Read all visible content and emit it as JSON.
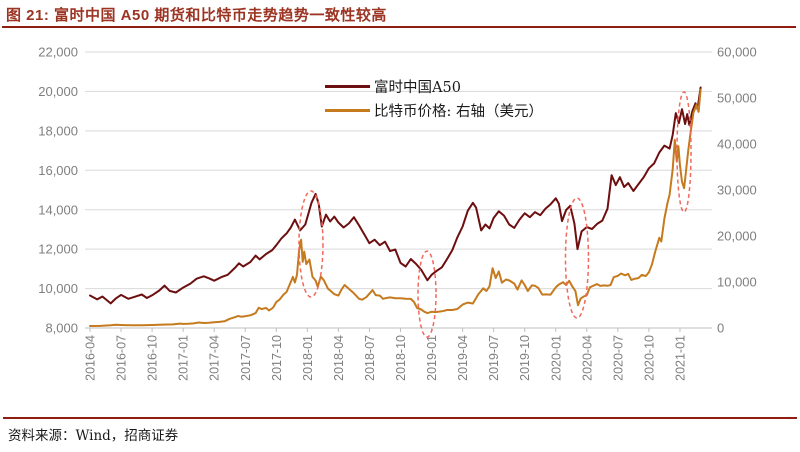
{
  "figure": {
    "title": "图 21: 富时中国 A50 期货和比特币走势趋势一致性较高",
    "source_note": "资料来源：Wind，招商证券",
    "accent_color": "#8f1d10",
    "title_color": "#9c3423"
  },
  "chart_data": {
    "type": "line",
    "title": "富时中国A50期货和比特币走势趋势一致性较高",
    "grid": "horizontal-on",
    "legend_position": "top-center",
    "x_axis": {
      "unit": "month",
      "start": "2016-04",
      "end": "2021-02",
      "tick_labels": [
        "2016-04",
        "2016-07",
        "2016-10",
        "2017-01",
        "2017-04",
        "2017-07",
        "2017-10",
        "2018-01",
        "2018-04",
        "2018-07",
        "2018-10",
        "2019-01",
        "2019-04",
        "2019-07",
        "2019-10",
        "2020-01",
        "2020-04",
        "2020-07",
        "2020-10",
        "2021-01"
      ],
      "tick_month_indices": [
        0,
        3,
        6,
        9,
        12,
        15,
        18,
        21,
        24,
        27,
        30,
        33,
        36,
        39,
        42,
        45,
        48,
        51,
        54,
        57
      ],
      "label_color": "#7f7f7f"
    },
    "y_axis_left": {
      "min": 8000,
      "max": 22000,
      "step": 2000,
      "tick_values": [
        22000,
        20000,
        18000,
        16000,
        14000,
        12000,
        10000,
        8000
      ],
      "label_color": "#7f7f7f"
    },
    "y_axis_right": {
      "min": 0,
      "max": 60000,
      "step": 10000,
      "tick_values": [
        60000,
        50000,
        40000,
        30000,
        20000,
        10000,
        0
      ],
      "label_color": "#7f7f7f"
    },
    "series": [
      {
        "name": "富时中国A50",
        "axis": "left",
        "color": "#6d0f10",
        "points": [
          [
            0,
            9650
          ],
          [
            0.7,
            9450
          ],
          [
            1.2,
            9600
          ],
          [
            2,
            9250
          ],
          [
            2.5,
            9500
          ],
          [
            3,
            9680
          ],
          [
            3.7,
            9480
          ],
          [
            4.2,
            9560
          ],
          [
            5,
            9700
          ],
          [
            5.5,
            9520
          ],
          [
            6,
            9660
          ],
          [
            6.7,
            9900
          ],
          [
            7.2,
            10150
          ],
          [
            7.7,
            9880
          ],
          [
            8.3,
            9800
          ],
          [
            9,
            10050
          ],
          [
            9.7,
            10250
          ],
          [
            10.3,
            10500
          ],
          [
            11,
            10620
          ],
          [
            11.5,
            10520
          ],
          [
            12,
            10400
          ],
          [
            12.7,
            10580
          ],
          [
            13.3,
            10700
          ],
          [
            14,
            11050
          ],
          [
            14.4,
            11280
          ],
          [
            14.8,
            11120
          ],
          [
            15.5,
            11350
          ],
          [
            16,
            11670
          ],
          [
            16.4,
            11480
          ],
          [
            17,
            11750
          ],
          [
            17.6,
            11950
          ],
          [
            18,
            12200
          ],
          [
            18.5,
            12550
          ],
          [
            19,
            12800
          ],
          [
            19.4,
            13100
          ],
          [
            19.8,
            13500
          ],
          [
            20.3,
            12950
          ],
          [
            20.8,
            13250
          ],
          [
            21.4,
            14350
          ],
          [
            21.8,
            14800
          ],
          [
            22.1,
            14300
          ],
          [
            22.4,
            13150
          ],
          [
            22.8,
            13750
          ],
          [
            23.2,
            13400
          ],
          [
            23.6,
            13650
          ],
          [
            24,
            13350
          ],
          [
            24.5,
            13100
          ],
          [
            25,
            13300
          ],
          [
            25.5,
            13620
          ],
          [
            26,
            13200
          ],
          [
            26.5,
            12750
          ],
          [
            27,
            12300
          ],
          [
            27.5,
            12480
          ],
          [
            28,
            12200
          ],
          [
            28.5,
            12380
          ],
          [
            29,
            11900
          ],
          [
            29.5,
            11980
          ],
          [
            30,
            11300
          ],
          [
            30.5,
            11120
          ],
          [
            31,
            11500
          ],
          [
            31.5,
            11250
          ],
          [
            32,
            10950
          ],
          [
            32.6,
            10420
          ],
          [
            33,
            10700
          ],
          [
            33.5,
            10900
          ],
          [
            34,
            11080
          ],
          [
            34.5,
            11500
          ],
          [
            35,
            11950
          ],
          [
            35.5,
            12600
          ],
          [
            36,
            13150
          ],
          [
            36.5,
            13950
          ],
          [
            37,
            14350
          ],
          [
            37.3,
            14100
          ],
          [
            37.8,
            12950
          ],
          [
            38.2,
            13250
          ],
          [
            38.6,
            13050
          ],
          [
            39,
            13580
          ],
          [
            39.5,
            13920
          ],
          [
            40,
            13700
          ],
          [
            40.5,
            13250
          ],
          [
            41,
            13080
          ],
          [
            41.5,
            13500
          ],
          [
            42,
            13820
          ],
          [
            42.5,
            13620
          ],
          [
            43,
            13880
          ],
          [
            43.5,
            13720
          ],
          [
            44,
            14050
          ],
          [
            44.5,
            14280
          ],
          [
            45,
            14580
          ],
          [
            45.3,
            14300
          ],
          [
            45.6,
            13420
          ],
          [
            46,
            13980
          ],
          [
            46.4,
            14200
          ],
          [
            46.8,
            13300
          ],
          [
            47.1,
            12000
          ],
          [
            47.5,
            12900
          ],
          [
            48,
            13120
          ],
          [
            48.5,
            13020
          ],
          [
            49,
            13280
          ],
          [
            49.5,
            13450
          ],
          [
            50,
            14050
          ],
          [
            50.4,
            15750
          ],
          [
            50.8,
            15250
          ],
          [
            51.2,
            15650
          ],
          [
            51.6,
            15150
          ],
          [
            52,
            15350
          ],
          [
            52.5,
            14950
          ],
          [
            53,
            15300
          ],
          [
            53.5,
            15650
          ],
          [
            54,
            16100
          ],
          [
            54.5,
            16350
          ],
          [
            55,
            16900
          ],
          [
            55.5,
            17250
          ],
          [
            56,
            17100
          ],
          [
            56.3,
            17800
          ],
          [
            56.6,
            18900
          ],
          [
            56.9,
            18400
          ],
          [
            57.2,
            19100
          ],
          [
            57.5,
            18350
          ],
          [
            57.7,
            18850
          ],
          [
            57.9,
            18300
          ],
          [
            58.2,
            19000
          ],
          [
            58.5,
            19400
          ],
          [
            58.7,
            19100
          ],
          [
            59,
            20200
          ]
        ]
      },
      {
        "name": "比特币价格: 右轴（美元）",
        "axis": "right",
        "color": "#c57a1e",
        "points": [
          [
            0,
            430
          ],
          [
            1,
            460
          ],
          [
            2,
            590
          ],
          [
            2.5,
            690
          ],
          [
            3,
            660
          ],
          [
            4,
            580
          ],
          [
            5,
            610
          ],
          [
            6,
            650
          ],
          [
            7,
            730
          ],
          [
            8,
            780
          ],
          [
            8.7,
            960
          ],
          [
            9,
            900
          ],
          [
            9.5,
            920
          ],
          [
            10,
            1010
          ],
          [
            10.5,
            1190
          ],
          [
            11,
            1090
          ],
          [
            11.5,
            1160
          ],
          [
            12,
            1260
          ],
          [
            12.5,
            1330
          ],
          [
            13,
            1460
          ],
          [
            13.5,
            2000
          ],
          [
            14,
            2350
          ],
          [
            14.3,
            2600
          ],
          [
            14.6,
            2450
          ],
          [
            15,
            2560
          ],
          [
            15.5,
            2760
          ],
          [
            16,
            3250
          ],
          [
            16.3,
            4400
          ],
          [
            16.6,
            4100
          ],
          [
            17,
            4380
          ],
          [
            17.3,
            3800
          ],
          [
            17.7,
            4450
          ],
          [
            18,
            5650
          ],
          [
            18.3,
            6150
          ],
          [
            18.7,
            7250
          ],
          [
            19,
            7850
          ],
          [
            19.3,
            9500
          ],
          [
            19.6,
            11100
          ],
          [
            19.8,
            9900
          ],
          [
            20,
            11600
          ],
          [
            20.2,
            16900
          ],
          [
            20.4,
            19200
          ],
          [
            20.55,
            14400
          ],
          [
            20.7,
            16600
          ],
          [
            20.9,
            13900
          ],
          [
            21.2,
            14900
          ],
          [
            21.5,
            11100
          ],
          [
            21.8,
            10300
          ],
          [
            22,
            8950
          ],
          [
            22.3,
            11200
          ],
          [
            22.6,
            10350
          ],
          [
            23,
            8550
          ],
          [
            23.3,
            7950
          ],
          [
            23.6,
            7350
          ],
          [
            24,
            7050
          ],
          [
            24.3,
            8350
          ],
          [
            24.6,
            9350
          ],
          [
            25,
            8550
          ],
          [
            25.5,
            7550
          ],
          [
            26,
            6350
          ],
          [
            26.3,
            6150
          ],
          [
            26.7,
            6700
          ],
          [
            27,
            7450
          ],
          [
            27.3,
            8250
          ],
          [
            27.6,
            7150
          ],
          [
            28,
            7050
          ],
          [
            28.3,
            6350
          ],
          [
            28.7,
            6550
          ],
          [
            29,
            6650
          ],
          [
            29.5,
            6480
          ],
          [
            30,
            6450
          ],
          [
            30.5,
            6380
          ],
          [
            31,
            6320
          ],
          [
            31.3,
            5650
          ],
          [
            31.6,
            4350
          ],
          [
            32,
            4020
          ],
          [
            32.3,
            3550
          ],
          [
            32.6,
            3250
          ],
          [
            33,
            3520
          ],
          [
            33.4,
            3460
          ],
          [
            34,
            3620
          ],
          [
            34.5,
            3920
          ],
          [
            35,
            3920
          ],
          [
            35.5,
            4120
          ],
          [
            36,
            5080
          ],
          [
            36.5,
            5520
          ],
          [
            37,
            5320
          ],
          [
            37.5,
            7250
          ],
          [
            38,
            8620
          ],
          [
            38.3,
            8050
          ],
          [
            38.6,
            9050
          ],
          [
            38.9,
            13000
          ],
          [
            39.2,
            10850
          ],
          [
            39.5,
            12300
          ],
          [
            39.8,
            9850
          ],
          [
            40.2,
            10550
          ],
          [
            40.5,
            10350
          ],
          [
            41,
            9650
          ],
          [
            41.3,
            8350
          ],
          [
            41.7,
            10350
          ],
          [
            42,
            9350
          ],
          [
            42.3,
            8050
          ],
          [
            42.7,
            9250
          ],
          [
            43,
            9180
          ],
          [
            43.3,
            8750
          ],
          [
            43.7,
            7250
          ],
          [
            44,
            7300
          ],
          [
            44.5,
            7250
          ],
          [
            45,
            8850
          ],
          [
            45.3,
            9450
          ],
          [
            45.7,
            9950
          ],
          [
            46,
            9350
          ],
          [
            46.3,
            10250
          ],
          [
            46.6,
            9050
          ],
          [
            46.9,
            8050
          ],
          [
            47.15,
            4950
          ],
          [
            47.4,
            6400
          ],
          [
            47.7,
            6850
          ],
          [
            48,
            7150
          ],
          [
            48.3,
            8850
          ],
          [
            48.7,
            9250
          ],
          [
            49,
            9550
          ],
          [
            49.3,
            9150
          ],
          [
            49.7,
            9250
          ],
          [
            50,
            9180
          ],
          [
            50.3,
            9350
          ],
          [
            50.6,
            11050
          ],
          [
            51,
            11350
          ],
          [
            51.3,
            11850
          ],
          [
            51.7,
            11450
          ],
          [
            52,
            11750
          ],
          [
            52.3,
            10450
          ],
          [
            52.7,
            10750
          ],
          [
            53,
            10850
          ],
          [
            53.3,
            11550
          ],
          [
            53.7,
            11300
          ],
          [
            54,
            12100
          ],
          [
            54.3,
            13850
          ],
          [
            54.6,
            16500
          ],
          [
            55,
            19600
          ],
          [
            55.2,
            18800
          ],
          [
            55.5,
            23800
          ],
          [
            55.8,
            27200
          ],
          [
            56,
            29000
          ],
          [
            56.3,
            34500
          ],
          [
            56.5,
            40900
          ],
          [
            56.7,
            36200
          ],
          [
            56.85,
            39500
          ],
          [
            57,
            35500
          ],
          [
            57.2,
            31800
          ],
          [
            57.4,
            30400
          ],
          [
            57.6,
            34500
          ],
          [
            57.8,
            38500
          ],
          [
            58,
            42000
          ],
          [
            58.3,
            46800
          ],
          [
            58.6,
            48500
          ],
          [
            58.8,
            47000
          ],
          [
            59,
            51800
          ]
        ]
      }
    ],
    "annotations": {
      "style": "dashed-ellipse",
      "color": "#f2685c",
      "ellipses": [
        {
          "x_index": 21.35,
          "rx_months": 1.16,
          "y_center_left": 12260,
          "ry_left": 2690
        },
        {
          "x_index": 32.56,
          "rx_months": 0.87,
          "y_center_left": 9720,
          "ry_left": 2180
        },
        {
          "x_index": 47.05,
          "rx_months": 1.11,
          "y_center_left": 11550,
          "ry_left": 3045
        },
        {
          "x_index": 57.39,
          "rx_months": 0.68,
          "y_center_left": 16930,
          "ry_left": 3045
        }
      ]
    },
    "grid_color": "#d9d9d9",
    "axis_line_color": "#bfbfbf"
  }
}
